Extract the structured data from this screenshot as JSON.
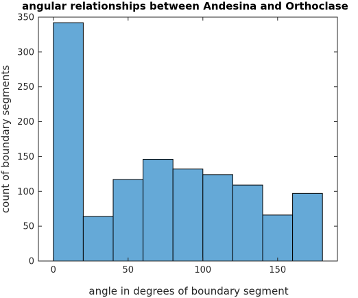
{
  "chart_data": {
    "type": "bar",
    "title": "angular relationships between Andesina and Orthoclase",
    "xlabel": "angle in degrees of boundary segment",
    "ylabel": "count of boundary segments",
    "bin_edges": [
      0,
      20,
      40,
      60,
      80,
      100,
      120,
      140,
      160,
      180
    ],
    "values": [
      342,
      64,
      117,
      146,
      132,
      124,
      109,
      66,
      97
    ],
    "xlim": [
      -10,
      190
    ],
    "ylim": [
      0,
      350
    ],
    "x_ticks": [
      0,
      50,
      100,
      150
    ],
    "y_ticks": [
      0,
      50,
      100,
      150,
      200,
      250,
      300,
      350
    ],
    "grid": false,
    "bar_color": "#65a9d7",
    "edge_color": "#000000"
  }
}
